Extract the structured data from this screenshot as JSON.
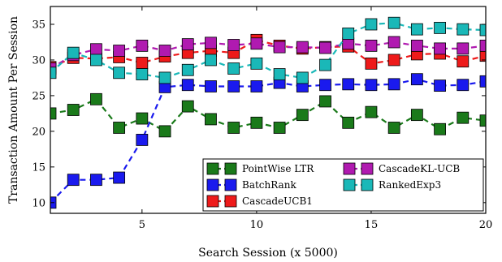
{
  "chart_data": {
    "type": "line",
    "xlabel": "Search Session (x 5000)",
    "ylabel": "Transaction Amount Per Session",
    "xlim": [
      1,
      20
    ],
    "ylim": [
      8.5,
      37.5
    ],
    "xticks": [
      5,
      10,
      15,
      20
    ],
    "yticks": [
      10,
      15,
      20,
      25,
      30,
      35
    ],
    "grid": false,
    "legend_position": "bottom-right",
    "x": [
      1,
      2,
      3,
      4,
      5,
      6,
      7,
      8,
      9,
      10,
      11,
      12,
      13,
      14,
      15,
      16,
      17,
      18,
      19,
      20
    ],
    "series": [
      {
        "name": "PointWise LTR",
        "color": "#1a7a1a",
        "values": [
          22.5,
          23.0,
          24.5,
          20.5,
          21.8,
          20.0,
          23.5,
          21.7,
          20.5,
          21.2,
          20.5,
          22.3,
          24.2,
          21.2,
          22.7,
          20.5,
          22.3,
          20.3,
          21.9,
          21.5
        ]
      },
      {
        "name": "BatchRank",
        "color": "#1a1aee",
        "values": [
          10.0,
          13.2,
          13.2,
          13.5,
          18.8,
          26.2,
          26.5,
          26.3,
          26.3,
          26.3,
          26.8,
          26.3,
          26.5,
          26.6,
          26.5,
          26.6,
          27.3,
          26.4,
          26.5,
          27.0
        ]
      },
      {
        "name": "CascadeUCB1",
        "color": "#ee1a1a",
        "values": [
          29.0,
          30.3,
          30.2,
          30.4,
          29.6,
          30.5,
          31.0,
          31.3,
          31.0,
          32.8,
          32.0,
          31.6,
          31.8,
          31.9,
          29.5,
          30.0,
          30.8,
          30.9,
          29.8,
          30.6
        ]
      },
      {
        "name": "CascadeKL-UCB",
        "color": "#b01ab0",
        "values": [
          28.8,
          30.7,
          31.5,
          31.3,
          32.0,
          31.3,
          32.2,
          32.4,
          32.1,
          32.3,
          31.8,
          31.8,
          31.7,
          32.3,
          32.0,
          32.5,
          32.0,
          31.6,
          31.6,
          32.0
        ]
      },
      {
        "name": "RankedExp3",
        "color": "#1ab8b8",
        "values": [
          28.2,
          31.0,
          30.0,
          28.2,
          28.0,
          27.5,
          28.6,
          30.0,
          28.8,
          29.5,
          28.0,
          27.5,
          29.3,
          33.7,
          35.0,
          35.2,
          34.3,
          34.5,
          34.3,
          34.2
        ]
      }
    ]
  }
}
